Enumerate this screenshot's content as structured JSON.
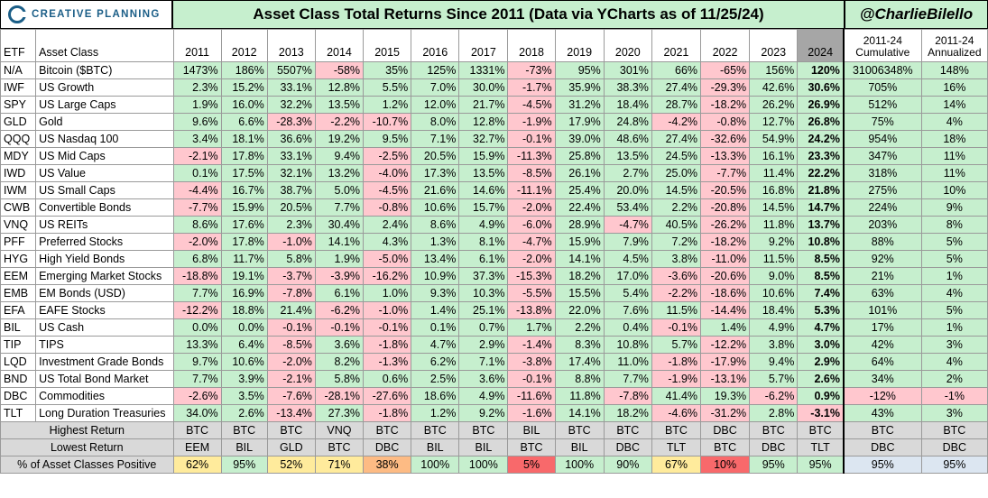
{
  "header": {
    "logo_text": "CREATIVE PLANNING",
    "title": "Asset Class Total Returns Since 2011 (Data via YCharts as of 11/25/24)",
    "handle": "@CharlieBilello"
  },
  "columns": {
    "etf": "ETF",
    "asset_class": "Asset Class",
    "years": [
      "2011",
      "2012",
      "2013",
      "2014",
      "2015",
      "2016",
      "2017",
      "2018",
      "2019",
      "2020",
      "2021",
      "2022",
      "2023",
      "2024"
    ],
    "cumulative": [
      "2011-24",
      "Cumulative"
    ],
    "annualized": [
      "2011-24",
      "Annualized"
    ]
  },
  "colors": {
    "positive": "#c6efce",
    "negative": "#ffc7ce",
    "current_year_header": "#a6a6a6",
    "summary_label": "#d9d9d9",
    "summary_mid": "#ffeb9c",
    "summary_low": "#f8696b",
    "cum_ann_positive": "#dce6f1"
  },
  "chart_data": {
    "type": "table",
    "title": "Asset Class Total Returns Since 2011 (Data via YCharts as of 11/25/24)",
    "rows": [
      {
        "etf": "N/A",
        "asset": "Bitcoin ($BTC)",
        "returns": [
          "1473%",
          "186%",
          "5507%",
          "-58%",
          "35%",
          "125%",
          "1331%",
          "-73%",
          "95%",
          "301%",
          "66%",
          "-65%",
          "156%",
          "120%"
        ],
        "cum": "31006348%",
        "ann": "148%"
      },
      {
        "etf": "IWF",
        "asset": "US Growth",
        "returns": [
          "2.3%",
          "15.2%",
          "33.1%",
          "12.8%",
          "5.5%",
          "7.0%",
          "30.0%",
          "-1.7%",
          "35.9%",
          "38.3%",
          "27.4%",
          "-29.3%",
          "42.6%",
          "30.6%"
        ],
        "cum": "705%",
        "ann": "16%"
      },
      {
        "etf": "SPY",
        "asset": "US Large Caps",
        "returns": [
          "1.9%",
          "16.0%",
          "32.2%",
          "13.5%",
          "1.2%",
          "12.0%",
          "21.7%",
          "-4.5%",
          "31.2%",
          "18.4%",
          "28.7%",
          "-18.2%",
          "26.2%",
          "26.9%"
        ],
        "cum": "512%",
        "ann": "14%"
      },
      {
        "etf": "GLD",
        "asset": "Gold",
        "returns": [
          "9.6%",
          "6.6%",
          "-28.3%",
          "-2.2%",
          "-10.7%",
          "8.0%",
          "12.8%",
          "-1.9%",
          "17.9%",
          "24.8%",
          "-4.2%",
          "-0.8%",
          "12.7%",
          "26.8%"
        ],
        "cum": "75%",
        "ann": "4%"
      },
      {
        "etf": "QQQ",
        "asset": "US Nasdaq 100",
        "returns": [
          "3.4%",
          "18.1%",
          "36.6%",
          "19.2%",
          "9.5%",
          "7.1%",
          "32.7%",
          "-0.1%",
          "39.0%",
          "48.6%",
          "27.4%",
          "-32.6%",
          "54.9%",
          "24.2%"
        ],
        "cum": "954%",
        "ann": "18%"
      },
      {
        "etf": "MDY",
        "asset": "US Mid Caps",
        "returns": [
          "-2.1%",
          "17.8%",
          "33.1%",
          "9.4%",
          "-2.5%",
          "20.5%",
          "15.9%",
          "-11.3%",
          "25.8%",
          "13.5%",
          "24.5%",
          "-13.3%",
          "16.1%",
          "23.3%"
        ],
        "cum": "347%",
        "ann": "11%"
      },
      {
        "etf": "IWD",
        "asset": "US Value",
        "returns": [
          "0.1%",
          "17.5%",
          "32.1%",
          "13.2%",
          "-4.0%",
          "17.3%",
          "13.5%",
          "-8.5%",
          "26.1%",
          "2.7%",
          "25.0%",
          "-7.7%",
          "11.4%",
          "22.2%"
        ],
        "cum": "318%",
        "ann": "11%"
      },
      {
        "etf": "IWM",
        "asset": "US Small Caps",
        "returns": [
          "-4.4%",
          "16.7%",
          "38.7%",
          "5.0%",
          "-4.5%",
          "21.6%",
          "14.6%",
          "-11.1%",
          "25.4%",
          "20.0%",
          "14.5%",
          "-20.5%",
          "16.8%",
          "21.8%"
        ],
        "cum": "275%",
        "ann": "10%"
      },
      {
        "etf": "CWB",
        "asset": "Convertible Bonds",
        "returns": [
          "-7.7%",
          "15.9%",
          "20.5%",
          "7.7%",
          "-0.8%",
          "10.6%",
          "15.7%",
          "-2.0%",
          "22.4%",
          "53.4%",
          "2.2%",
          "-20.8%",
          "14.5%",
          "14.7%"
        ],
        "cum": "224%",
        "ann": "9%"
      },
      {
        "etf": "VNQ",
        "asset": "US REITs",
        "returns": [
          "8.6%",
          "17.6%",
          "2.3%",
          "30.4%",
          "2.4%",
          "8.6%",
          "4.9%",
          "-6.0%",
          "28.9%",
          "-4.7%",
          "40.5%",
          "-26.2%",
          "11.8%",
          "13.7%"
        ],
        "cum": "203%",
        "ann": "8%"
      },
      {
        "etf": "PFF",
        "asset": "Preferred Stocks",
        "returns": [
          "-2.0%",
          "17.8%",
          "-1.0%",
          "14.1%",
          "4.3%",
          "1.3%",
          "8.1%",
          "-4.7%",
          "15.9%",
          "7.9%",
          "7.2%",
          "-18.2%",
          "9.2%",
          "10.8%"
        ],
        "cum": "88%",
        "ann": "5%"
      },
      {
        "etf": "HYG",
        "asset": "High Yield Bonds",
        "returns": [
          "6.8%",
          "11.7%",
          "5.8%",
          "1.9%",
          "-5.0%",
          "13.4%",
          "6.1%",
          "-2.0%",
          "14.1%",
          "4.5%",
          "3.8%",
          "-11.0%",
          "11.5%",
          "8.5%"
        ],
        "cum": "92%",
        "ann": "5%"
      },
      {
        "etf": "EEM",
        "asset": "Emerging Market Stocks",
        "returns": [
          "-18.8%",
          "19.1%",
          "-3.7%",
          "-3.9%",
          "-16.2%",
          "10.9%",
          "37.3%",
          "-15.3%",
          "18.2%",
          "17.0%",
          "-3.6%",
          "-20.6%",
          "9.0%",
          "8.5%"
        ],
        "cum": "21%",
        "ann": "1%"
      },
      {
        "etf": "EMB",
        "asset": "EM Bonds (USD)",
        "returns": [
          "7.7%",
          "16.9%",
          "-7.8%",
          "6.1%",
          "1.0%",
          "9.3%",
          "10.3%",
          "-5.5%",
          "15.5%",
          "5.4%",
          "-2.2%",
          "-18.6%",
          "10.6%",
          "7.4%"
        ],
        "cum": "63%",
        "ann": "4%"
      },
      {
        "etf": "EFA",
        "asset": "EAFE Stocks",
        "returns": [
          "-12.2%",
          "18.8%",
          "21.4%",
          "-6.2%",
          "-1.0%",
          "1.4%",
          "25.1%",
          "-13.8%",
          "22.0%",
          "7.6%",
          "11.5%",
          "-14.4%",
          "18.4%",
          "5.3%"
        ],
        "cum": "101%",
        "ann": "5%"
      },
      {
        "etf": "BIL",
        "asset": "US Cash",
        "returns": [
          "0.0%",
          "0.0%",
          "-0.1%",
          "-0.1%",
          "-0.1%",
          "0.1%",
          "0.7%",
          "1.7%",
          "2.2%",
          "0.4%",
          "-0.1%",
          "1.4%",
          "4.9%",
          "4.7%"
        ],
        "cum": "17%",
        "ann": "1%"
      },
      {
        "etf": "TIP",
        "asset": "TIPS",
        "returns": [
          "13.3%",
          "6.4%",
          "-8.5%",
          "3.6%",
          "-1.8%",
          "4.7%",
          "2.9%",
          "-1.4%",
          "8.3%",
          "10.8%",
          "5.7%",
          "-12.2%",
          "3.8%",
          "3.0%"
        ],
        "cum": "42%",
        "ann": "3%"
      },
      {
        "etf": "LQD",
        "asset": "Investment Grade Bonds",
        "returns": [
          "9.7%",
          "10.6%",
          "-2.0%",
          "8.2%",
          "-1.3%",
          "6.2%",
          "7.1%",
          "-3.8%",
          "17.4%",
          "11.0%",
          "-1.8%",
          "-17.9%",
          "9.4%",
          "2.9%"
        ],
        "cum": "64%",
        "ann": "4%"
      },
      {
        "etf": "BND",
        "asset": "US Total Bond Market",
        "returns": [
          "7.7%",
          "3.9%",
          "-2.1%",
          "5.8%",
          "0.6%",
          "2.5%",
          "3.6%",
          "-0.1%",
          "8.8%",
          "7.7%",
          "-1.9%",
          "-13.1%",
          "5.7%",
          "2.6%"
        ],
        "cum": "34%",
        "ann": "2%"
      },
      {
        "etf": "DBC",
        "asset": "Commodities",
        "returns": [
          "-2.6%",
          "3.5%",
          "-7.6%",
          "-28.1%",
          "-27.6%",
          "18.6%",
          "4.9%",
          "-11.6%",
          "11.8%",
          "-7.8%",
          "41.4%",
          "19.3%",
          "-6.2%",
          "0.9%"
        ],
        "cum": "-12%",
        "ann": "-1%"
      },
      {
        "etf": "TLT",
        "asset": "Long Duration Treasuries",
        "returns": [
          "34.0%",
          "2.6%",
          "-13.4%",
          "27.3%",
          "-1.8%",
          "1.2%",
          "9.2%",
          "-1.6%",
          "14.1%",
          "18.2%",
          "-4.6%",
          "-31.2%",
          "2.8%",
          "-3.1%"
        ],
        "cum": "43%",
        "ann": "3%"
      }
    ],
    "summary": {
      "highest": {
        "label": "Highest Return",
        "values": [
          "BTC",
          "BTC",
          "BTC",
          "VNQ",
          "BTC",
          "BTC",
          "BTC",
          "BIL",
          "BTC",
          "BTC",
          "BTC",
          "DBC",
          "BTC",
          "BTC",
          "BTC",
          "BTC"
        ]
      },
      "lowest": {
        "label": "Lowest Return",
        "values": [
          "EEM",
          "BIL",
          "GLD",
          "BTC",
          "DBC",
          "BIL",
          "BIL",
          "BTC",
          "BIL",
          "DBC",
          "TLT",
          "BTC",
          "DBC",
          "TLT",
          "DBC",
          "DBC"
        ]
      },
      "positive": {
        "label": "% of Asset Classes Positive",
        "values": [
          "62%",
          "95%",
          "52%",
          "71%",
          "38%",
          "100%",
          "100%",
          "5%",
          "100%",
          "90%",
          "67%",
          "10%",
          "95%",
          "95%",
          "95%",
          "95%"
        ]
      }
    }
  }
}
